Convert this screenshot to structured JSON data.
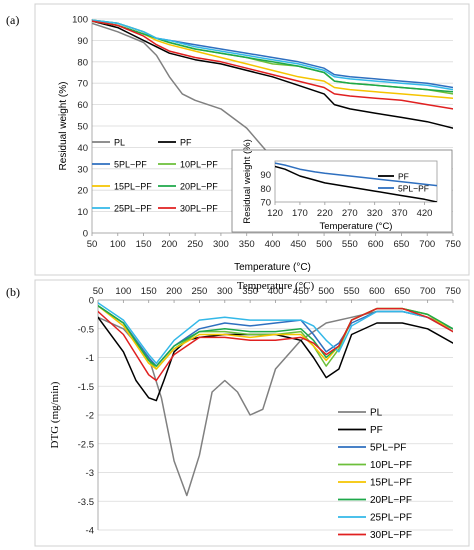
{
  "panels": {
    "a": "(a)",
    "b": "(b)"
  },
  "chart_data": [
    {
      "type": "line",
      "panel": "a",
      "xlabel": "Temperature (°C)",
      "ylabel": "Residual weight (%)",
      "xlim": [
        50,
        750
      ],
      "ylim": [
        0,
        100
      ],
      "xticks": [
        50,
        100,
        150,
        200,
        250,
        300,
        350,
        400,
        450,
        500,
        550,
        600,
        650,
        700,
        750
      ],
      "yticks": [
        0,
        10,
        20,
        30,
        40,
        50,
        60,
        70,
        80,
        90,
        100
      ],
      "grid": "horizontal",
      "legend": "left",
      "series": [
        {
          "name": "PL",
          "color": "#808080",
          "x": [
            50,
            100,
            150,
            175,
            200,
            225,
            250,
            300,
            350,
            375,
            400,
            425,
            450
          ],
          "y": [
            98,
            94,
            89,
            83,
            73,
            65,
            62,
            58,
            49,
            42,
            35,
            22,
            8
          ]
        },
        {
          "name": "PF",
          "color": "#000000",
          "x": [
            50,
            100,
            150,
            175,
            200,
            250,
            300,
            350,
            400,
            450,
            500,
            520,
            550,
            600,
            650,
            700,
            750
          ],
          "y": [
            99,
            96,
            90,
            87,
            84,
            81,
            79,
            76,
            73,
            69,
            65,
            60,
            58,
            56,
            54,
            52,
            49
          ]
        },
        {
          "name": "5PL−PF",
          "color": "#2e6fbf",
          "x": [
            50,
            100,
            150,
            175,
            200,
            250,
            300,
            350,
            400,
            450,
            500,
            520,
            550,
            600,
            650,
            700,
            750
          ],
          "y": [
            99.5,
            98,
            94,
            91,
            90,
            88,
            86,
            84,
            82,
            80,
            77,
            74,
            73,
            72,
            71,
            70,
            68
          ]
        },
        {
          "name": "10PL−PF",
          "color": "#6cbf3a",
          "x": [
            50,
            100,
            150,
            175,
            200,
            250,
            300,
            350,
            400,
            450,
            500,
            520,
            550,
            600,
            650,
            700,
            750
          ],
          "y": [
            99.5,
            98,
            94,
            91,
            89,
            86,
            84,
            82,
            79,
            78,
            75,
            71,
            70,
            69,
            68,
            67,
            65
          ]
        },
        {
          "name": "15PL−PF",
          "color": "#f5c400",
          "x": [
            50,
            100,
            150,
            175,
            200,
            250,
            300,
            350,
            400,
            450,
            500,
            520,
            550,
            600,
            650,
            700,
            750
          ],
          "y": [
            99,
            97,
            93,
            90,
            88,
            85,
            82,
            79,
            76,
            73,
            71,
            68,
            67,
            66,
            65,
            64,
            63
          ]
        },
        {
          "name": "20PL−PF",
          "color": "#1ea84a",
          "x": [
            50,
            100,
            150,
            175,
            200,
            250,
            300,
            350,
            400,
            450,
            500,
            520,
            550,
            600,
            650,
            700,
            750
          ],
          "y": [
            99,
            97,
            93,
            91,
            89,
            86,
            84,
            82,
            80,
            78,
            75,
            71,
            70,
            69,
            68,
            67,
            66
          ]
        },
        {
          "name": "25PL−PF",
          "color": "#33b8e8",
          "x": [
            50,
            100,
            150,
            175,
            200,
            250,
            300,
            350,
            400,
            450,
            500,
            520,
            550,
            600,
            650,
            700,
            750
          ],
          "y": [
            99.5,
            98,
            94,
            91,
            90,
            87,
            85,
            83,
            81,
            79,
            76,
            73,
            72,
            71,
            70,
            69,
            67
          ]
        },
        {
          "name": "30PL−PF",
          "color": "#e02020",
          "x": [
            50,
            100,
            150,
            175,
            200,
            250,
            300,
            350,
            400,
            450,
            500,
            520,
            550,
            600,
            650,
            700,
            750
          ],
          "y": [
            99,
            97,
            92,
            88,
            85,
            82,
            80,
            77,
            74,
            71,
            68,
            65,
            64,
            63,
            62,
            60,
            58
          ]
        }
      ]
    },
    {
      "type": "line",
      "panel": "a-inset",
      "xlabel": "Temperature (°C)",
      "ylabel": "Residual weight (%)",
      "xlim": [
        120,
        445
      ],
      "ylim": [
        70,
        100
      ],
      "xticks": [
        120,
        170,
        220,
        270,
        320,
        370,
        420
      ],
      "yticks": [
        70,
        80,
        90
      ],
      "legend": "top-right",
      "series": [
        {
          "name": "PF",
          "color": "#000000",
          "x": [
            120,
            140,
            170,
            200,
            220,
            270,
            320,
            370,
            420,
            445
          ],
          "y": [
            96,
            94,
            89,
            86,
            84,
            81,
            78,
            75,
            72,
            70
          ]
        },
        {
          "name": "5PL−PF",
          "color": "#2e6fbf",
          "x": [
            120,
            140,
            170,
            200,
            220,
            270,
            320,
            370,
            420,
            445
          ],
          "y": [
            98.5,
            97,
            94,
            92,
            91,
            89,
            87,
            85,
            83,
            82
          ]
        }
      ]
    },
    {
      "type": "line",
      "panel": "b",
      "xlabel": "Temperature (°C)",
      "ylabel": "DTG (mg/min)",
      "xlim": [
        50,
        750
      ],
      "ylim": [
        -4,
        0
      ],
      "xticks": [
        50,
        100,
        150,
        200,
        250,
        300,
        350,
        400,
        450,
        500,
        550,
        600,
        650,
        700,
        750
      ],
      "yticks": [
        0,
        -0.5,
        -1,
        -1.5,
        -2,
        -2.5,
        -3,
        -3.5,
        -4
      ],
      "grid": "horizontal",
      "legend": "right",
      "series": [
        {
          "name": "PL",
          "color": "#808080",
          "x": [
            50,
            100,
            150,
            175,
            200,
            225,
            250,
            275,
            300,
            325,
            350,
            375,
            400,
            450,
            500,
            550,
            600,
            650,
            700,
            750
          ],
          "y": [
            -0.3,
            -0.5,
            -1.0,
            -1.7,
            -2.8,
            -3.4,
            -2.7,
            -1.6,
            -1.4,
            -1.6,
            -2.0,
            -1.9,
            -1.2,
            -0.7,
            -0.4,
            -0.3,
            -0.2,
            -0.2,
            -0.3,
            -0.5
          ]
        },
        {
          "name": "PF",
          "color": "#000000",
          "x": [
            50,
            100,
            125,
            150,
            165,
            180,
            200,
            225,
            250,
            300,
            350,
            400,
            450,
            475,
            500,
            525,
            550,
            600,
            650,
            700,
            750
          ],
          "y": [
            -0.3,
            -0.9,
            -1.4,
            -1.7,
            -1.75,
            -1.4,
            -0.9,
            -0.7,
            -0.65,
            -0.6,
            -0.6,
            -0.6,
            -0.7,
            -1.0,
            -1.35,
            -1.2,
            -0.6,
            -0.4,
            -0.4,
            -0.5,
            -0.75
          ]
        },
        {
          "name": "5PL−PF",
          "color": "#2e6fbf",
          "x": [
            50,
            100,
            150,
            165,
            200,
            250,
            300,
            350,
            400,
            450,
            475,
            500,
            525,
            550,
            600,
            650,
            700,
            750
          ],
          "y": [
            -0.1,
            -0.4,
            -1.0,
            -1.15,
            -0.8,
            -0.5,
            -0.4,
            -0.45,
            -0.4,
            -0.35,
            -0.6,
            -0.9,
            -0.75,
            -0.4,
            -0.2,
            -0.2,
            -0.3,
            -0.5
          ]
        },
        {
          "name": "10PL−PF",
          "color": "#6cbf3a",
          "x": [
            50,
            100,
            150,
            165,
            200,
            250,
            300,
            350,
            400,
            450,
            475,
            500,
            525,
            550,
            600,
            650,
            700,
            750
          ],
          "y": [
            -0.1,
            -0.4,
            -1.05,
            -1.2,
            -0.85,
            -0.55,
            -0.55,
            -0.6,
            -0.6,
            -0.55,
            -0.8,
            -1.15,
            -0.85,
            -0.35,
            -0.15,
            -0.15,
            -0.25,
            -0.5
          ]
        },
        {
          "name": "15PL−PF",
          "color": "#f5c400",
          "x": [
            50,
            100,
            150,
            165,
            200,
            250,
            300,
            350,
            400,
            450,
            475,
            500,
            525,
            550,
            600,
            650,
            700,
            750
          ],
          "y": [
            -0.1,
            -0.45,
            -1.1,
            -1.2,
            -0.85,
            -0.6,
            -0.6,
            -0.65,
            -0.6,
            -0.6,
            -0.8,
            -1.05,
            -0.8,
            -0.35,
            -0.15,
            -0.15,
            -0.25,
            -0.55
          ]
        },
        {
          "name": "20PL−PF",
          "color": "#1ea84a",
          "x": [
            50,
            100,
            150,
            165,
            200,
            250,
            300,
            350,
            400,
            450,
            475,
            500,
            525,
            550,
            600,
            650,
            700,
            750
          ],
          "y": [
            -0.1,
            -0.4,
            -1.05,
            -1.15,
            -0.8,
            -0.55,
            -0.5,
            -0.55,
            -0.55,
            -0.5,
            -0.7,
            -1.0,
            -0.8,
            -0.35,
            -0.15,
            -0.15,
            -0.25,
            -0.5
          ]
        },
        {
          "name": "25PL−PF",
          "color": "#33b8e8",
          "x": [
            50,
            100,
            150,
            165,
            200,
            250,
            300,
            350,
            400,
            450,
            475,
            500,
            525,
            550,
            600,
            650,
            700,
            750
          ],
          "y": [
            -0.05,
            -0.35,
            -0.95,
            -1.1,
            -0.7,
            -0.35,
            -0.3,
            -0.35,
            -0.35,
            -0.35,
            -0.45,
            -0.7,
            -0.9,
            -0.45,
            -0.2,
            -0.2,
            -0.3,
            -0.55
          ]
        },
        {
          "name": "30PL−PF",
          "color": "#e02020",
          "x": [
            50,
            100,
            150,
            165,
            200,
            250,
            300,
            350,
            400,
            450,
            475,
            500,
            525,
            550,
            600,
            650,
            700,
            750
          ],
          "y": [
            -0.2,
            -0.6,
            -1.3,
            -1.4,
            -0.95,
            -0.65,
            -0.65,
            -0.7,
            -0.7,
            -0.65,
            -0.75,
            -0.95,
            -0.8,
            -0.35,
            -0.15,
            -0.15,
            -0.3,
            -0.55
          ]
        }
      ]
    }
  ]
}
